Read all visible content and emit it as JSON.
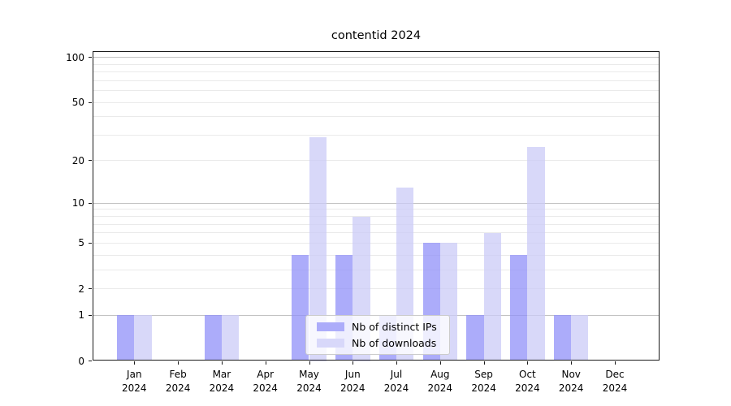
{
  "title": "contentid 2024",
  "year": "2024",
  "months": [
    "Jan",
    "Feb",
    "Mar",
    "Apr",
    "May",
    "Jun",
    "Jul",
    "Aug",
    "Sep",
    "Oct",
    "Nov",
    "Dec"
  ],
  "y_tick_values": [
    0,
    1,
    2,
    5,
    10,
    20,
    50,
    100
  ],
  "colors": {
    "series1_fill": "rgba(144,144,248,0.75)",
    "series1_solid": "#acacfa",
    "series2_fill": "rgba(203,203,247,0.75)",
    "series2_solid": "#d8d8fa",
    "grid_major": "#c3c3c3",
    "grid_minor": "#eaeaea",
    "spine": "#1a1a1a"
  },
  "legend": {
    "items": [
      {
        "label": "Nb of distinct IPs",
        "color": "#acacfa"
      },
      {
        "label": "Nb of downloads",
        "color": "#d8d8fa"
      }
    ]
  },
  "chart_data": {
    "type": "bar",
    "title": "contentid 2024",
    "categories": [
      "Jan 2024",
      "Feb 2024",
      "Mar 2024",
      "Apr 2024",
      "May 2024",
      "Jun 2024",
      "Jul 2024",
      "Aug 2024",
      "Sep 2024",
      "Oct 2024",
      "Nov 2024",
      "Dec 2024"
    ],
    "series": [
      {
        "name": "Nb of distinct IPs",
        "color": "#acacfa",
        "fill": "rgba(144,144,248,0.75)",
        "values": [
          1,
          0,
          1,
          0,
          4,
          4,
          1,
          5,
          1,
          4,
          1,
          0
        ]
      },
      {
        "name": "Nb of downloads",
        "color": "#d8d8fa",
        "fill": "rgba(203,203,247,0.75)",
        "values": [
          1,
          0,
          1,
          0,
          29,
          8,
          13,
          5,
          6,
          25,
          1,
          0
        ]
      }
    ],
    "xlabel": "",
    "ylabel": "",
    "yscale": "log1p",
    "yticks": [
      0,
      1,
      2,
      5,
      10,
      20,
      50,
      100
    ],
    "ylim": [
      0,
      111
    ],
    "grid": true,
    "grid_major_at": [
      1,
      10,
      100
    ],
    "legend_position": "lower center"
  }
}
